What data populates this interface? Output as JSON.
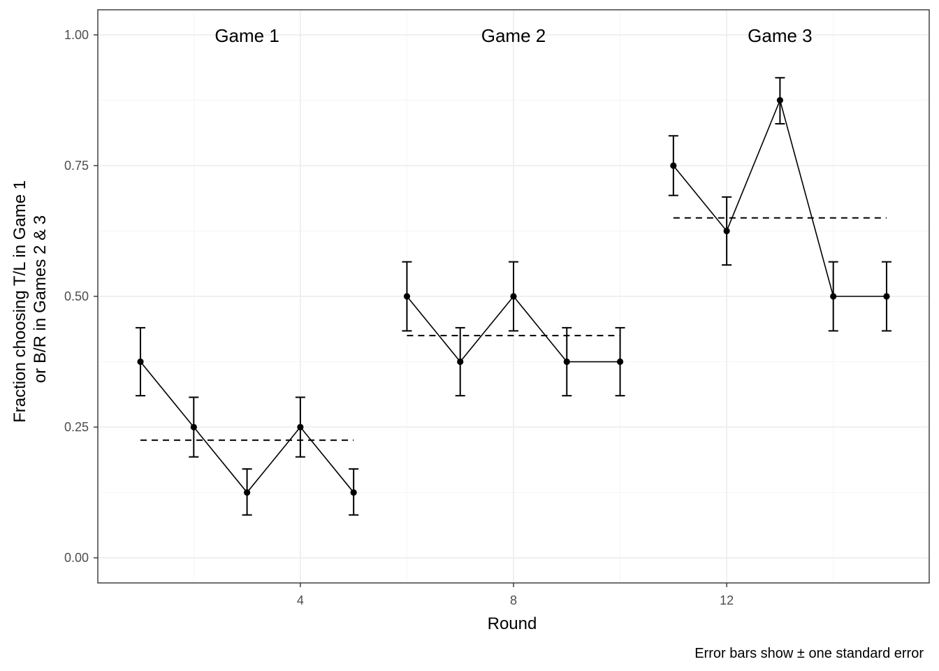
{
  "chart_data": {
    "type": "line",
    "xlabel": "Round",
    "ylabel": [
      "Fraction choosing T/L in Game 1",
      "or B/R in Games 2 & 3"
    ],
    "caption": "Error bars show ± one standard error",
    "xlim": [
      0.2,
      15.8
    ],
    "ylim": [
      -0.048,
      1.048
    ],
    "x_ticks": [
      4,
      8,
      12
    ],
    "y_ticks": [
      0.0,
      0.25,
      0.5,
      0.75,
      1.0
    ],
    "y_tick_labels": [
      "0.00",
      "0.25",
      "0.50",
      "0.75",
      "1.00"
    ],
    "grid": true,
    "legend": "none",
    "games": [
      {
        "label": "Game 1",
        "rounds": [
          1,
          2,
          3,
          4,
          5
        ],
        "fraction": [
          0.375,
          0.25,
          0.125,
          0.25,
          0.125
        ],
        "se_lower": [
          0.31,
          0.193,
          0.082,
          0.193,
          0.082
        ],
        "se_upper": [
          0.44,
          0.307,
          0.17,
          0.307,
          0.17
        ],
        "mean": 0.225
      },
      {
        "label": "Game 2",
        "rounds": [
          6,
          7,
          8,
          9,
          10
        ],
        "fraction": [
          0.5,
          0.375,
          0.5,
          0.375,
          0.375
        ],
        "se_lower": [
          0.434,
          0.31,
          0.434,
          0.31,
          0.31
        ],
        "se_upper": [
          0.566,
          0.44,
          0.566,
          0.44,
          0.44
        ],
        "mean": 0.425
      },
      {
        "label": "Game 3",
        "rounds": [
          11,
          12,
          13,
          14,
          15
        ],
        "fraction": [
          0.75,
          0.625,
          0.875,
          0.5,
          0.5
        ],
        "se_lower": [
          0.693,
          0.56,
          0.83,
          0.434,
          0.434
        ],
        "se_upper": [
          0.807,
          0.69,
          0.918,
          0.566,
          0.566
        ],
        "mean": 0.65
      }
    ]
  },
  "colors": {
    "ink": "#000000",
    "grid_major": "#ebebeb",
    "grid_minor": "#f5f5f5",
    "tick_text": "#4d4d4d",
    "panel_border": "#333333"
  }
}
